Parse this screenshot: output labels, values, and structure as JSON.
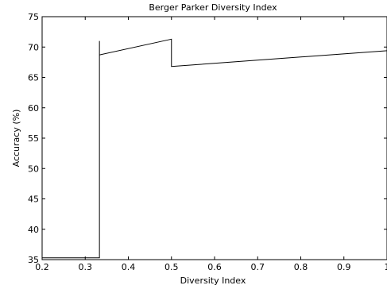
{
  "chart_data": {
    "type": "line",
    "title": "Berger Parker Diversity Index",
    "xlabel": "Diversity Index",
    "ylabel": "Accuracy (%)",
    "xlim": [
      0.2,
      1.0
    ],
    "ylim": [
      35,
      75
    ],
    "xticks": [
      0.2,
      0.3,
      0.4,
      0.5,
      0.6,
      0.7,
      0.8,
      0.9,
      1.0
    ],
    "xtick_labels": [
      "0.2",
      "0.3",
      "0.4",
      "0.5",
      "0.6",
      "0.7",
      "0.8",
      "0.9",
      "1"
    ],
    "yticks": [
      35,
      40,
      45,
      50,
      55,
      60,
      65,
      70,
      75
    ],
    "ytick_labels": [
      "35",
      "40",
      "45",
      "50",
      "55",
      "60",
      "65",
      "70",
      "75"
    ],
    "grid": false,
    "series": [
      {
        "color": "#000000",
        "x": [
          0.2,
          0.333,
          0.333,
          0.333,
          0.5,
          0.5,
          1.0
        ],
        "y": [
          35.3,
          35.3,
          71.0,
          68.7,
          71.3,
          66.8,
          69.4
        ]
      }
    ]
  }
}
